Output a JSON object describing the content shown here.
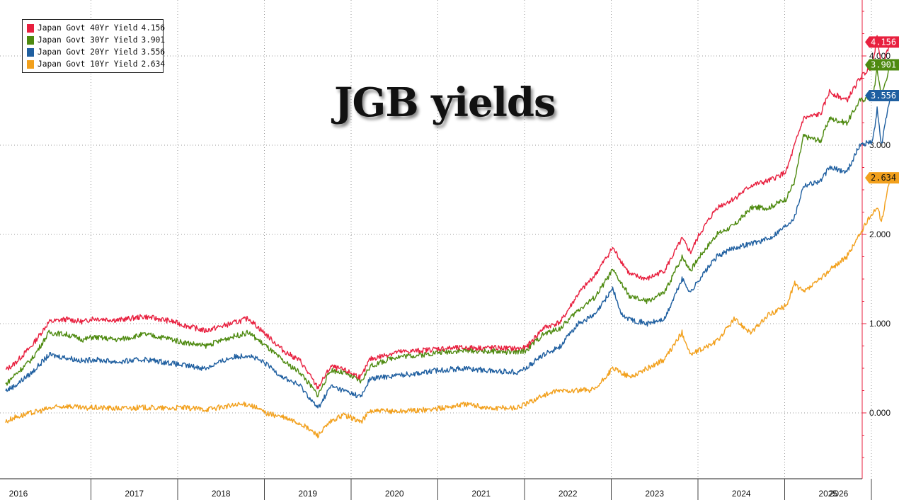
{
  "chart_data": {
    "type": "line",
    "title": "JGB yields",
    "ylim": [
      -0.5,
      4.6
    ],
    "xlim": [
      2015.95,
      2026.22
    ],
    "y_ticks": [
      {
        "value": 0.0,
        "label": "0.000"
      },
      {
        "value": 1.0,
        "label": "1.000"
      },
      {
        "value": 2.0,
        "label": "2.000"
      },
      {
        "value": 3.0,
        "label": "3.000"
      },
      {
        "value": 4.0,
        "label": "4.000"
      }
    ],
    "x_ticks": [
      "2016",
      "2017",
      "2018",
      "2019",
      "2020",
      "2021",
      "2022",
      "2023",
      "2024",
      "2025",
      "2026"
    ],
    "legend_position": "top-left",
    "grid": true,
    "series": [
      {
        "name": "Japan Govt 40Yr Yield",
        "last_label": "4.156",
        "last": 4.156,
        "color": "#e8203f",
        "points": [
          [
            2016.0,
            0.48
          ],
          [
            2016.1,
            0.55
          ],
          [
            2016.3,
            0.75
          ],
          [
            2016.5,
            1.02
          ],
          [
            2016.7,
            1.05
          ],
          [
            2016.9,
            1.02
          ],
          [
            2017.0,
            1.06
          ],
          [
            2017.3,
            1.04
          ],
          [
            2017.6,
            1.08
          ],
          [
            2017.9,
            1.03
          ],
          [
            2018.0,
            1.0
          ],
          [
            2018.3,
            0.92
          ],
          [
            2018.6,
            1.0
          ],
          [
            2018.8,
            1.06
          ],
          [
            2019.0,
            0.88
          ],
          [
            2019.2,
            0.7
          ],
          [
            2019.4,
            0.58
          ],
          [
            2019.6,
            0.28
          ],
          [
            2019.75,
            0.52
          ],
          [
            2019.9,
            0.48
          ],
          [
            2020.1,
            0.4
          ],
          [
            2020.2,
            0.6
          ],
          [
            2020.5,
            0.68
          ],
          [
            2020.8,
            0.7
          ],
          [
            2021.0,
            0.72
          ],
          [
            2021.3,
            0.73
          ],
          [
            2021.6,
            0.73
          ],
          [
            2021.9,
            0.72
          ],
          [
            2022.0,
            0.73
          ],
          [
            2022.2,
            0.95
          ],
          [
            2022.4,
            1.02
          ],
          [
            2022.6,
            1.33
          ],
          [
            2022.8,
            1.55
          ],
          [
            2023.0,
            1.85
          ],
          [
            2023.2,
            1.55
          ],
          [
            2023.4,
            1.5
          ],
          [
            2023.6,
            1.6
          ],
          [
            2023.8,
            1.95
          ],
          [
            2023.9,
            1.8
          ],
          [
            2024.0,
            2.0
          ],
          [
            2024.2,
            2.3
          ],
          [
            2024.4,
            2.4
          ],
          [
            2024.6,
            2.55
          ],
          [
            2024.8,
            2.6
          ],
          [
            2025.0,
            2.7
          ],
          [
            2025.2,
            3.3
          ],
          [
            2025.4,
            3.35
          ],
          [
            2025.5,
            3.6
          ],
          [
            2025.7,
            3.5
          ],
          [
            2025.85,
            3.75
          ],
          [
            2026.0,
            3.9
          ],
          [
            2026.05,
            4.25
          ],
          [
            2026.1,
            3.85
          ],
          [
            2026.2,
            4.156
          ]
        ]
      },
      {
        "name": "Japan Govt 30Yr Yield",
        "last_label": "3.901",
        "last": 3.901,
        "color": "#4e8a10",
        "points": [
          [
            2016.0,
            0.32
          ],
          [
            2016.1,
            0.42
          ],
          [
            2016.3,
            0.6
          ],
          [
            2016.5,
            0.9
          ],
          [
            2016.7,
            0.88
          ],
          [
            2016.9,
            0.82
          ],
          [
            2017.0,
            0.85
          ],
          [
            2017.3,
            0.82
          ],
          [
            2017.6,
            0.88
          ],
          [
            2017.9,
            0.83
          ],
          [
            2018.0,
            0.8
          ],
          [
            2018.3,
            0.75
          ],
          [
            2018.6,
            0.85
          ],
          [
            2018.8,
            0.9
          ],
          [
            2019.0,
            0.75
          ],
          [
            2019.2,
            0.58
          ],
          [
            2019.4,
            0.45
          ],
          [
            2019.6,
            0.2
          ],
          [
            2019.75,
            0.48
          ],
          [
            2019.9,
            0.45
          ],
          [
            2020.1,
            0.35
          ],
          [
            2020.2,
            0.52
          ],
          [
            2020.5,
            0.63
          ],
          [
            2020.8,
            0.65
          ],
          [
            2021.0,
            0.68
          ],
          [
            2021.3,
            0.7
          ],
          [
            2021.6,
            0.69
          ],
          [
            2021.9,
            0.68
          ],
          [
            2022.0,
            0.7
          ],
          [
            2022.2,
            0.88
          ],
          [
            2022.4,
            0.95
          ],
          [
            2022.6,
            1.15
          ],
          [
            2022.8,
            1.3
          ],
          [
            2023.0,
            1.6
          ],
          [
            2023.2,
            1.3
          ],
          [
            2023.4,
            1.25
          ],
          [
            2023.6,
            1.35
          ],
          [
            2023.8,
            1.75
          ],
          [
            2023.9,
            1.6
          ],
          [
            2024.0,
            1.75
          ],
          [
            2024.2,
            2.0
          ],
          [
            2024.4,
            2.1
          ],
          [
            2024.6,
            2.3
          ],
          [
            2024.8,
            2.3
          ],
          [
            2025.0,
            2.4
          ],
          [
            2025.1,
            2.6
          ],
          [
            2025.2,
            3.1
          ],
          [
            2025.4,
            3.05
          ],
          [
            2025.5,
            3.3
          ],
          [
            2025.7,
            3.25
          ],
          [
            2025.85,
            3.5
          ],
          [
            2026.0,
            3.55
          ],
          [
            2026.05,
            3.85
          ],
          [
            2026.1,
            3.55
          ],
          [
            2026.2,
            3.901
          ]
        ]
      },
      {
        "name": "Japan Govt 20Yr Yield",
        "last_label": "3.556",
        "last": 3.556,
        "color": "#1f5fa0",
        "points": [
          [
            2016.0,
            0.25
          ],
          [
            2016.1,
            0.3
          ],
          [
            2016.3,
            0.45
          ],
          [
            2016.5,
            0.65
          ],
          [
            2016.7,
            0.62
          ],
          [
            2016.9,
            0.58
          ],
          [
            2017.0,
            0.6
          ],
          [
            2017.3,
            0.57
          ],
          [
            2017.6,
            0.6
          ],
          [
            2017.9,
            0.56
          ],
          [
            2018.0,
            0.54
          ],
          [
            2018.3,
            0.5
          ],
          [
            2018.6,
            0.62
          ],
          [
            2018.8,
            0.65
          ],
          [
            2019.0,
            0.55
          ],
          [
            2019.2,
            0.4
          ],
          [
            2019.4,
            0.3
          ],
          [
            2019.6,
            0.05
          ],
          [
            2019.75,
            0.3
          ],
          [
            2019.9,
            0.25
          ],
          [
            2020.1,
            0.18
          ],
          [
            2020.2,
            0.38
          ],
          [
            2020.5,
            0.42
          ],
          [
            2020.8,
            0.45
          ],
          [
            2021.0,
            0.48
          ],
          [
            2021.3,
            0.5
          ],
          [
            2021.6,
            0.47
          ],
          [
            2021.9,
            0.46
          ],
          [
            2022.0,
            0.5
          ],
          [
            2022.2,
            0.65
          ],
          [
            2022.4,
            0.75
          ],
          [
            2022.6,
            1.0
          ],
          [
            2022.8,
            1.1
          ],
          [
            2023.0,
            1.4
          ],
          [
            2023.1,
            1.1
          ],
          [
            2023.2,
            1.05
          ],
          [
            2023.4,
            1.0
          ],
          [
            2023.6,
            1.05
          ],
          [
            2023.8,
            1.5
          ],
          [
            2023.9,
            1.35
          ],
          [
            2024.0,
            1.5
          ],
          [
            2024.2,
            1.75
          ],
          [
            2024.4,
            1.85
          ],
          [
            2024.6,
            1.9
          ],
          [
            2024.8,
            1.95
          ],
          [
            2025.0,
            2.1
          ],
          [
            2025.1,
            2.2
          ],
          [
            2025.2,
            2.55
          ],
          [
            2025.4,
            2.6
          ],
          [
            2025.5,
            2.75
          ],
          [
            2025.7,
            2.7
          ],
          [
            2025.85,
            3.0
          ],
          [
            2026.0,
            3.05
          ],
          [
            2026.05,
            3.4
          ],
          [
            2026.1,
            3.0
          ],
          [
            2026.2,
            3.556
          ]
        ]
      },
      {
        "name": "Japan Govt 10Yr Yield",
        "last_label": "2.634",
        "last": 2.634,
        "color": "#f2a01c",
        "points": [
          [
            2016.0,
            -0.1
          ],
          [
            2016.1,
            -0.05
          ],
          [
            2016.3,
            0.0
          ],
          [
            2016.5,
            0.05
          ],
          [
            2016.7,
            0.08
          ],
          [
            2016.9,
            0.05
          ],
          [
            2017.0,
            0.06
          ],
          [
            2017.3,
            0.05
          ],
          [
            2017.6,
            0.06
          ],
          [
            2017.9,
            0.05
          ],
          [
            2018.0,
            0.06
          ],
          [
            2018.3,
            0.04
          ],
          [
            2018.6,
            0.08
          ],
          [
            2018.8,
            0.1
          ],
          [
            2019.0,
            0.0
          ],
          [
            2019.2,
            -0.05
          ],
          [
            2019.4,
            -0.12
          ],
          [
            2019.6,
            -0.25
          ],
          [
            2019.75,
            -0.1
          ],
          [
            2019.9,
            -0.02
          ],
          [
            2020.1,
            -0.1
          ],
          [
            2020.2,
            0.02
          ],
          [
            2020.5,
            0.02
          ],
          [
            2020.8,
            0.03
          ],
          [
            2021.0,
            0.05
          ],
          [
            2021.3,
            0.1
          ],
          [
            2021.6,
            0.05
          ],
          [
            2021.9,
            0.06
          ],
          [
            2022.0,
            0.1
          ],
          [
            2022.2,
            0.2
          ],
          [
            2022.4,
            0.25
          ],
          [
            2022.6,
            0.25
          ],
          [
            2022.8,
            0.26
          ],
          [
            2023.0,
            0.5
          ],
          [
            2023.2,
            0.4
          ],
          [
            2023.4,
            0.5
          ],
          [
            2023.6,
            0.6
          ],
          [
            2023.8,
            0.9
          ],
          [
            2023.9,
            0.65
          ],
          [
            2024.0,
            0.7
          ],
          [
            2024.2,
            0.8
          ],
          [
            2024.4,
            1.05
          ],
          [
            2024.6,
            0.9
          ],
          [
            2024.8,
            1.1
          ],
          [
            2025.0,
            1.2
          ],
          [
            2025.1,
            1.45
          ],
          [
            2025.2,
            1.35
          ],
          [
            2025.4,
            1.5
          ],
          [
            2025.5,
            1.6
          ],
          [
            2025.7,
            1.75
          ],
          [
            2025.85,
            2.0
          ],
          [
            2026.0,
            2.25
          ],
          [
            2026.05,
            2.3
          ],
          [
            2026.1,
            2.15
          ],
          [
            2026.2,
            2.634
          ]
        ]
      }
    ]
  }
}
